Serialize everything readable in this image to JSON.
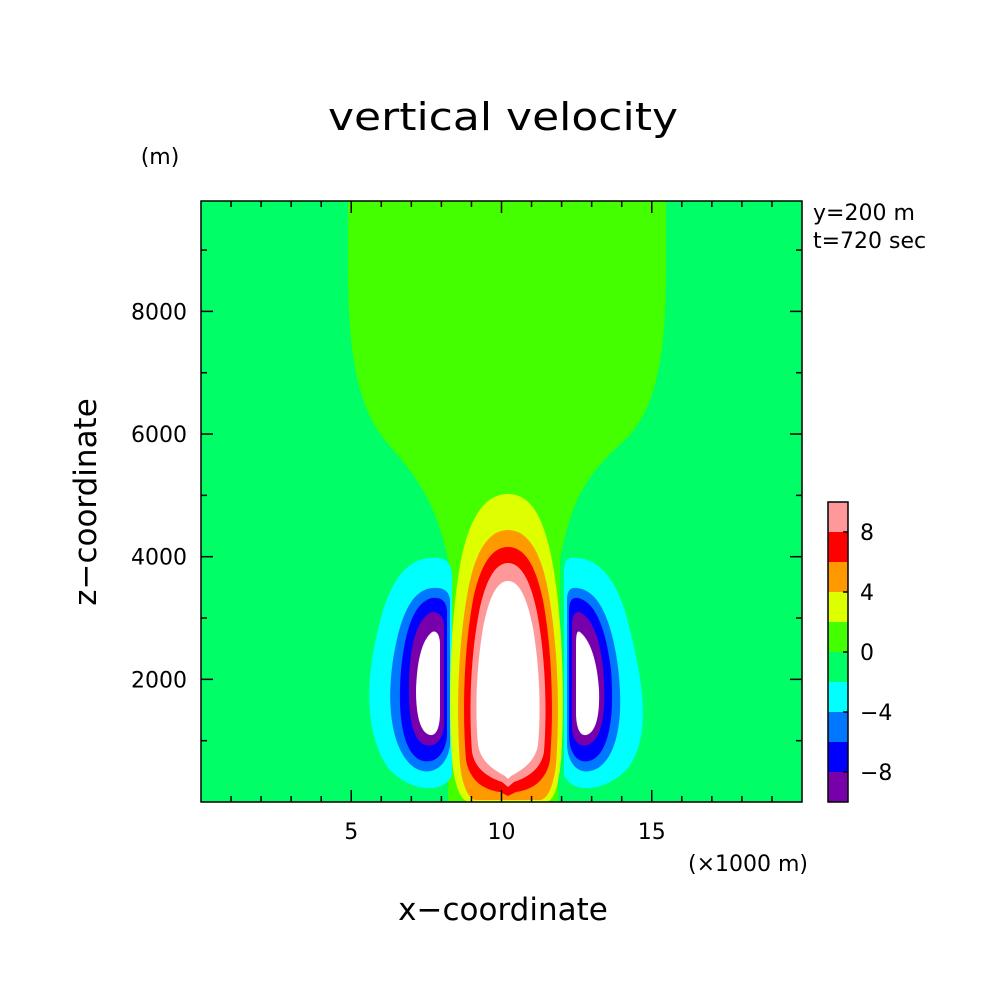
{
  "chart_data": {
    "type": "contour",
    "title": "vertical velocity",
    "xlabel": "x−coordinate",
    "ylabel": "z−coordinate",
    "x_unit": "(×1000 m)",
    "y_unit": "(m)",
    "annotations": [
      "y=200 m",
      "t=720 sec"
    ],
    "xlim": [
      0,
      20
    ],
    "ylim": [
      0,
      9800
    ],
    "x_ticks": [
      5,
      10,
      15
    ],
    "x_tick_labels": [
      "5",
      "10",
      "15"
    ],
    "x_minor_step": 1,
    "y_ticks": [
      2000,
      4000,
      6000,
      8000
    ],
    "y_tick_labels": [
      "2000",
      "4000",
      "6000",
      "8000"
    ],
    "y_minor_step": 1000,
    "colorbar": {
      "levels": [
        -10,
        -8,
        -6,
        -4,
        -2,
        0,
        2,
        4,
        6,
        8,
        10
      ],
      "colors": [
        "#7700aa",
        "#0000ff",
        "#0077ff",
        "#00ffff",
        "#00ff66",
        "#44ff00",
        "#ddff00",
        "#ff9900",
        "#ff0000",
        "#ff9999"
      ],
      "tick_labels": [
        "8",
        "4",
        "0",
        "−4",
        "−8"
      ],
      "tick_values": [
        8,
        4,
        0,
        -4,
        -8
      ]
    },
    "background_color": "#00ff66",
    "regions": [
      {
        "name": "upper-plume",
        "color": "#44ff00",
        "x": [
          5.0,
          15.9
        ],
        "z": [
          0,
          9800
        ]
      },
      {
        "name": "updraft-core",
        "color": "#ffffff",
        "x_center": 10.0,
        "z_range": [
          200,
          5100
        ],
        "max_value": "above 10"
      },
      {
        "name": "left-downdraft",
        "color": "#ffffff",
        "x_center": 7.8,
        "z_range": [
          700,
          4050
        ],
        "min_value": "below -10"
      },
      {
        "name": "right-downdraft",
        "color": "#ffffff",
        "x_center": 12.8,
        "z_range": [
          700,
          4050
        ],
        "min_value": "below -10"
      }
    ]
  }
}
